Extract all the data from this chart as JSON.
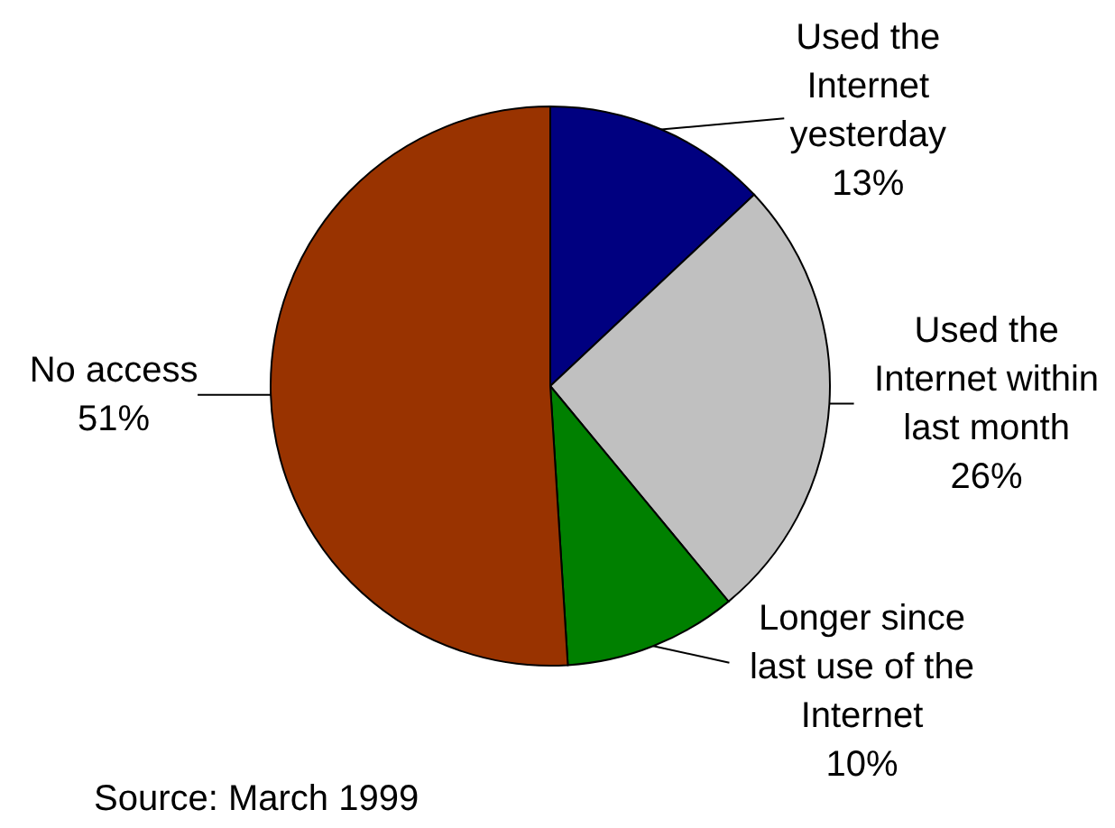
{
  "chart_data": {
    "type": "pie",
    "categories": [
      "Used the Internet yesterday",
      "Used the Internet within last month",
      "Longer since last use of the Internet",
      "No access"
    ],
    "values": [
      13,
      26,
      10,
      51
    ],
    "colors": [
      "#000080",
      "#c0c0c0",
      "#008000",
      "#993300"
    ],
    "value_labels": [
      "13%",
      "26%",
      "10%",
      "51%"
    ],
    "annotations": [
      "Source: March 1999"
    ]
  }
}
